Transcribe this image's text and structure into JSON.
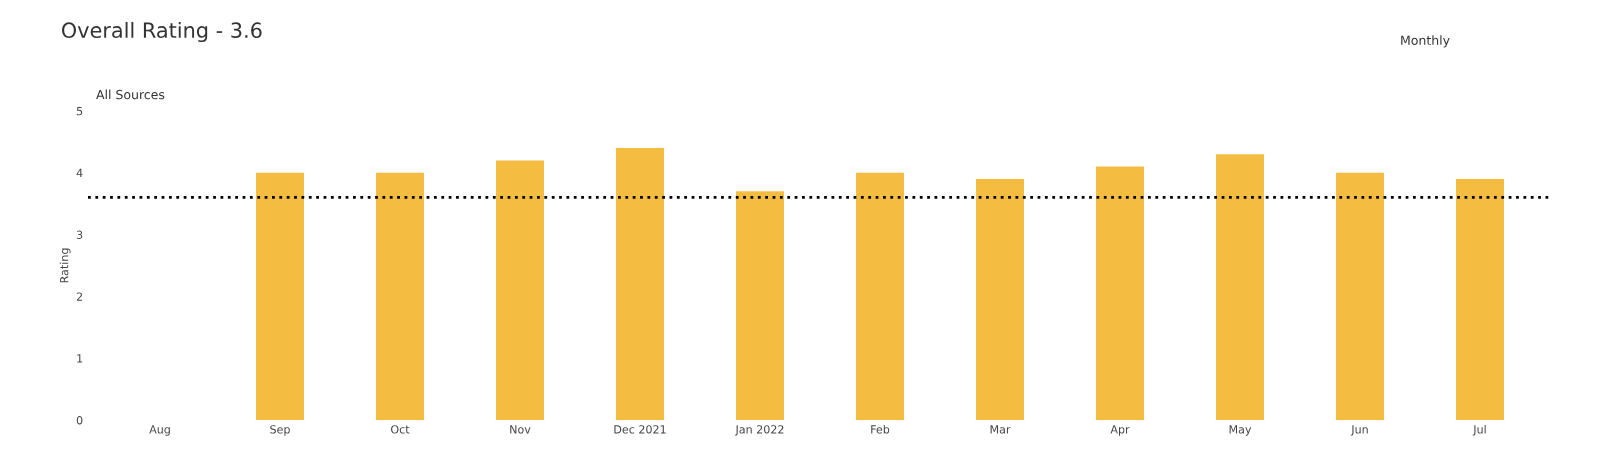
{
  "chart_data": {
    "type": "bar",
    "title": "Overall Rating - 3.6",
    "ylabel": "Rating",
    "categories": [
      "Aug",
      "Sep",
      "Oct",
      "Nov",
      "Dec 2021",
      "Jan 2022",
      "Feb",
      "Mar",
      "Apr",
      "May",
      "Jun",
      "Jul"
    ],
    "values": [
      null,
      4.0,
      4.0,
      4.2,
      4.4,
      3.7,
      4.0,
      3.9,
      4.1,
      4.3,
      4.0,
      3.9
    ],
    "color": "#f5bc42",
    "ylim": [
      0,
      5
    ],
    "yticks": [
      0,
      1,
      2,
      3,
      4,
      5
    ],
    "ref_lines": [
      {
        "axis": "y",
        "value": 3.6,
        "color": "#000000",
        "line_style": "dotted"
      }
    ],
    "annotations": [
      "Monthly",
      "All Sources"
    ],
    "grid": false,
    "legend": false
  }
}
